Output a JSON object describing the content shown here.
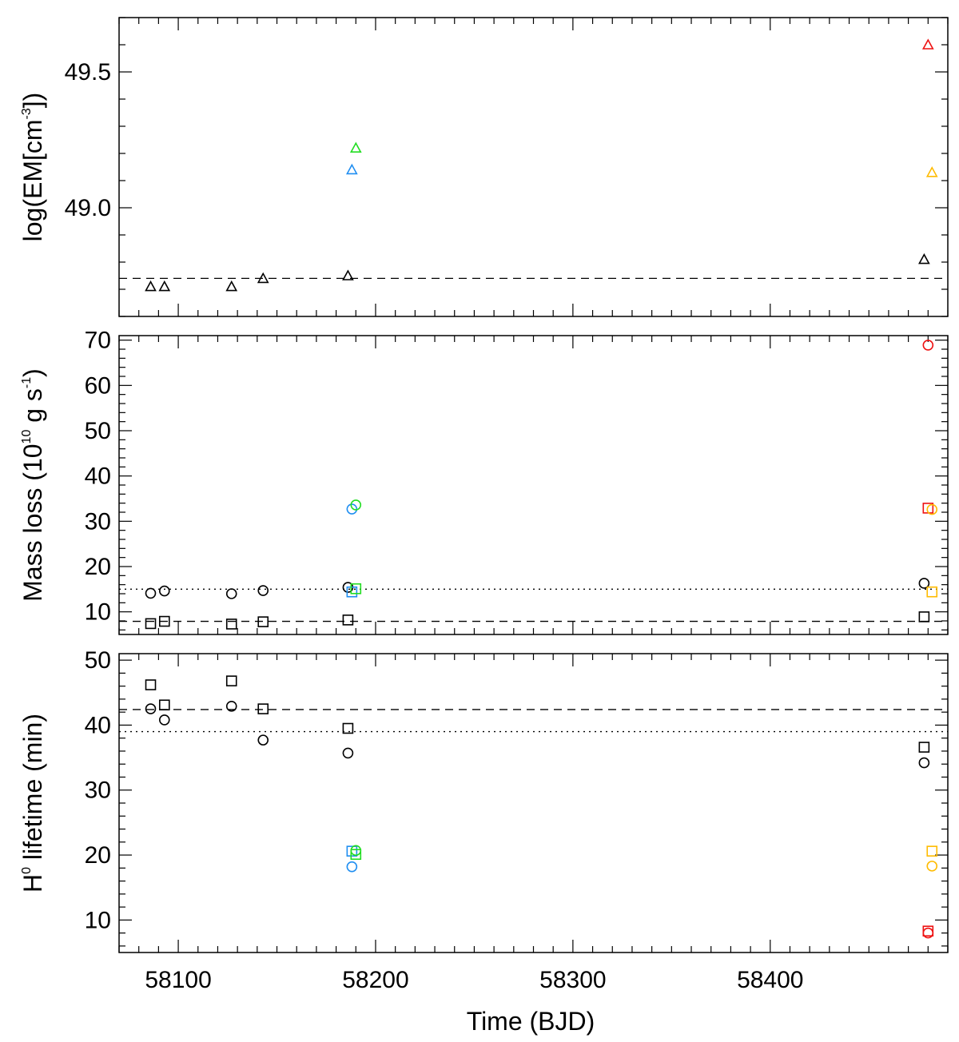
{
  "figure": {
    "xlabel": "Time (BJD)",
    "x_ticks": [
      58100,
      58200,
      58300,
      58400
    ],
    "x_tick_labels": [
      "58100",
      "58200",
      "58300",
      "58400"
    ],
    "xlim": [
      58070,
      58490
    ]
  },
  "colors": {
    "black": "#000000",
    "blue": "#1f8ef1",
    "green": "#22dd22",
    "red": "#ee1111",
    "orange": "#ffbb00"
  },
  "chart_data": [
    {
      "type": "scatter",
      "panel": "top",
      "ylabel_parts": [
        "log(EM[cm",
        "-3",
        "])"
      ],
      "ylim": [
        48.6,
        49.7
      ],
      "y_ticks": [
        49.0,
        49.5
      ],
      "y_tick_labels": [
        "49.0",
        "49.5"
      ],
      "y_minor_step": 0.1,
      "reference_lines": [
        {
          "style": "dashed",
          "y": 48.74
        }
      ],
      "series": [
        {
          "marker": "triangle",
          "color": "black",
          "points": [
            [
              58086,
              48.71
            ],
            [
              58093,
              48.71
            ],
            [
              58127,
              48.71
            ],
            [
              58143,
              48.74
            ],
            [
              58186,
              48.75
            ],
            [
              58478,
              48.81
            ]
          ]
        },
        {
          "marker": "triangle",
          "color": "blue",
          "points": [
            [
              58188,
              49.14
            ]
          ]
        },
        {
          "marker": "triangle",
          "color": "green",
          "points": [
            [
              58190,
              49.22
            ]
          ]
        },
        {
          "marker": "triangle",
          "color": "red",
          "points": [
            [
              58480,
              49.6
            ]
          ]
        },
        {
          "marker": "triangle",
          "color": "orange",
          "points": [
            [
              58482,
              49.13
            ]
          ]
        }
      ]
    },
    {
      "type": "scatter",
      "panel": "middle",
      "ylabel_parts": [
        "Mass loss (10",
        "10",
        " g s",
        "-1",
        ")"
      ],
      "ylim": [
        5,
        71
      ],
      "y_ticks": [
        10,
        20,
        30,
        40,
        50,
        60,
        70
      ],
      "y_tick_labels": [
        "10",
        "20",
        "30",
        "40",
        "50",
        "60",
        "70"
      ],
      "y_minor_step": 2,
      "reference_lines": [
        {
          "style": "dotted",
          "y": 15.0
        },
        {
          "style": "dashed",
          "y": 7.9
        }
      ],
      "series": [
        {
          "marker": "circle",
          "color": "black",
          "points": [
            [
              58086,
              14.1
            ],
            [
              58093,
              14.6
            ],
            [
              58127,
              14.0
            ],
            [
              58143,
              14.7
            ],
            [
              58186,
              15.4
            ],
            [
              58478,
              16.3
            ]
          ]
        },
        {
          "marker": "square",
          "color": "black",
          "points": [
            [
              58086,
              7.4
            ],
            [
              58093,
              7.9
            ],
            [
              58127,
              7.3
            ],
            [
              58143,
              7.8
            ],
            [
              58186,
              8.2
            ],
            [
              58478,
              8.9
            ]
          ]
        },
        {
          "marker": "circle",
          "color": "blue",
          "points": [
            [
              58188,
              32.7
            ]
          ]
        },
        {
          "marker": "square",
          "color": "blue",
          "points": [
            [
              58188,
              14.4
            ]
          ]
        },
        {
          "marker": "circle",
          "color": "green",
          "points": [
            [
              58190,
              33.6
            ]
          ]
        },
        {
          "marker": "square",
          "color": "green",
          "points": [
            [
              58190,
              15.1
            ]
          ]
        },
        {
          "marker": "circle",
          "color": "red",
          "points": [
            [
              58480,
              68.9
            ]
          ]
        },
        {
          "marker": "square",
          "color": "red",
          "points": [
            [
              58480,
              32.9
            ]
          ]
        },
        {
          "marker": "circle",
          "color": "orange",
          "points": [
            [
              58482,
              32.6
            ]
          ]
        },
        {
          "marker": "square",
          "color": "orange",
          "points": [
            [
              58482,
              14.4
            ]
          ]
        }
      ]
    },
    {
      "type": "scatter",
      "panel": "bottom",
      "ylabel_parts": [
        "H",
        "0",
        " lifetime (min)"
      ],
      "ylim": [
        5,
        51
      ],
      "y_ticks": [
        10,
        20,
        30,
        40,
        50
      ],
      "y_tick_labels": [
        "10",
        "20",
        "30",
        "40",
        "50"
      ],
      "y_minor_step": 2,
      "reference_lines": [
        {
          "style": "dashed",
          "y": 42.4
        },
        {
          "style": "dotted",
          "y": 39.0
        }
      ],
      "series": [
        {
          "marker": "circle",
          "color": "black",
          "points": [
            [
              58086,
              42.5
            ],
            [
              58093,
              40.8
            ],
            [
              58127,
              42.9
            ],
            [
              58143,
              37.7
            ],
            [
              58186,
              35.7
            ],
            [
              58478,
              34.2
            ]
          ]
        },
        {
          "marker": "square",
          "color": "black",
          "points": [
            [
              58086,
              46.2
            ],
            [
              58093,
              43.1
            ],
            [
              58127,
              46.8
            ],
            [
              58143,
              42.5
            ],
            [
              58186,
              39.5
            ],
            [
              58478,
              36.6
            ]
          ]
        },
        {
          "marker": "circle",
          "color": "blue",
          "points": [
            [
              58188,
              18.2
            ]
          ]
        },
        {
          "marker": "square",
          "color": "blue",
          "points": [
            [
              58188,
              20.6
            ]
          ]
        },
        {
          "marker": "circle",
          "color": "green",
          "points": [
            [
              58190,
              20.7
            ]
          ]
        },
        {
          "marker": "square",
          "color": "green",
          "points": [
            [
              58190,
              20.1
            ]
          ]
        },
        {
          "marker": "circle",
          "color": "red",
          "points": [
            [
              58480,
              8.0
            ]
          ]
        },
        {
          "marker": "square",
          "color": "red",
          "points": [
            [
              58480,
              8.3
            ]
          ]
        },
        {
          "marker": "circle",
          "color": "orange",
          "points": [
            [
              58482,
              18.3
            ]
          ]
        },
        {
          "marker": "square",
          "color": "orange",
          "points": [
            [
              58482,
              20.6
            ]
          ]
        }
      ]
    }
  ]
}
